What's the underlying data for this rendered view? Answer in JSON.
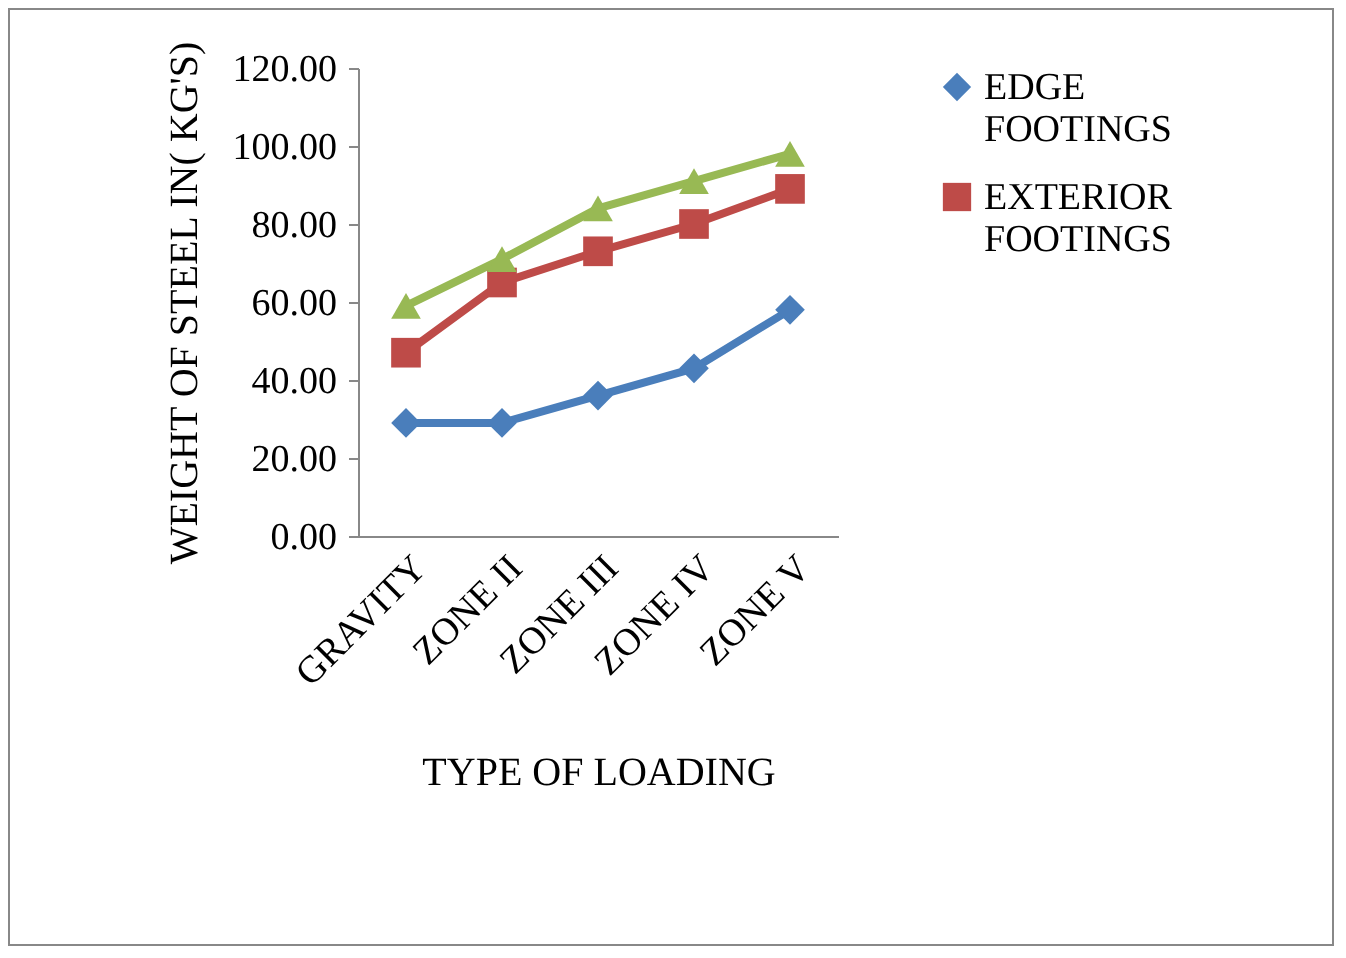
{
  "chart_data": {
    "type": "line",
    "xlabel": "TYPE OF LOADING",
    "ylabel": "WEIGHT OF STEEL IN( KG'S)",
    "categories": [
      "GRAVITY",
      "ZONE II",
      "ZONE III",
      "ZONE IV",
      "ZONE V"
    ],
    "series": [
      {
        "name": "EDGE FOOTINGS",
        "color": "#4a7ebb",
        "marker": "diamond",
        "values": [
          29,
          29,
          36,
          43,
          58
        ]
      },
      {
        "name": "EXTERIOR FOOTINGS",
        "color": "#be4b48",
        "marker": "square",
        "values": [
          47,
          65,
          73,
          80,
          89
        ]
      },
      {
        "color": "#98b954",
        "marker": "triangle",
        "values": [
          59,
          71,
          84,
          91,
          98
        ]
      }
    ],
    "ylim": [
      0,
      120
    ],
    "yticks": [
      {
        "value": 0,
        "label": "0.00"
      },
      {
        "value": 20,
        "label": "20.00"
      },
      {
        "value": 40,
        "label": "40.00"
      },
      {
        "value": 60,
        "label": "60.00"
      },
      {
        "value": 80,
        "label": "80.00"
      },
      {
        "value": 100,
        "label": "100.00"
      },
      {
        "value": 120,
        "label": "120.00"
      }
    ],
    "grid": false,
    "legend": "right"
  }
}
